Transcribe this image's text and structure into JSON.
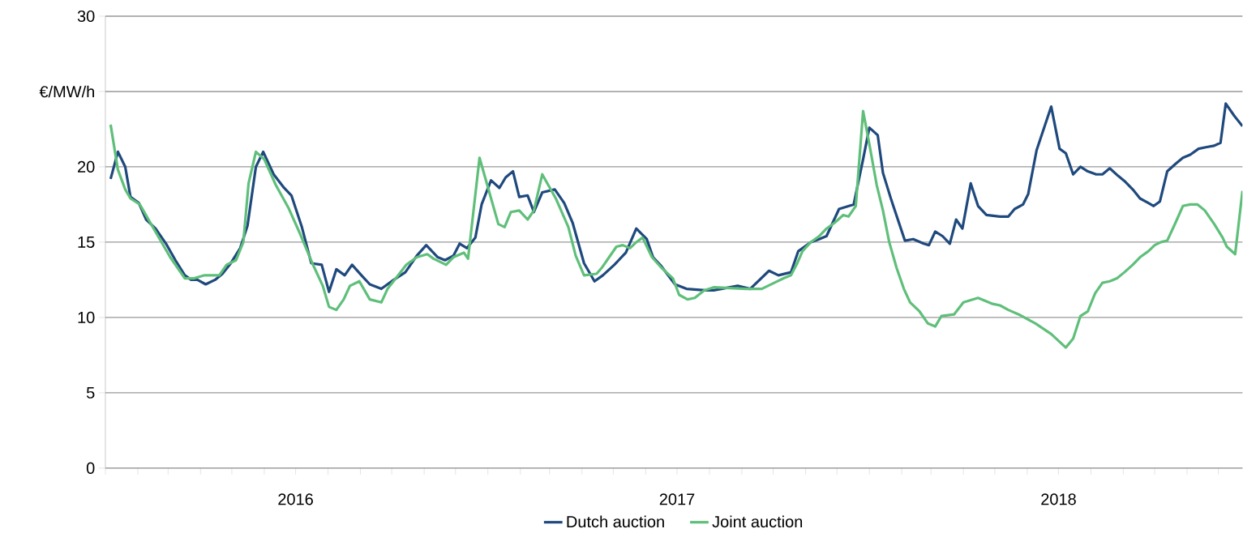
{
  "chart_data": {
    "type": "line",
    "legend": "bottom",
    "grid": "y",
    "marker": "none",
    "line_style": "solid",
    "xlim": [
      "2016-01-01",
      "2018-12-24"
    ],
    "ylim": [
      0,
      30
    ],
    "yticks": [
      0,
      5,
      10,
      15,
      20,
      {
        "value": 25,
        "label": "€/MW/h"
      },
      30
    ],
    "xticks": [
      {
        "value": "2016-01-01",
        "label": null
      },
      {
        "value": "2016-02-01",
        "label": null
      },
      {
        "value": "2016-03-01",
        "label": null
      },
      {
        "value": "2016-04-01",
        "label": null
      },
      {
        "value": "2016-05-01",
        "label": null
      },
      {
        "value": "2016-06-01",
        "label": null
      },
      {
        "value": "2016-07-01",
        "label": "2016"
      },
      {
        "value": "2016-08-01",
        "label": null
      },
      {
        "value": "2016-09-01",
        "label": null
      },
      {
        "value": "2016-10-01",
        "label": null
      },
      {
        "value": "2016-11-01",
        "label": null
      },
      {
        "value": "2016-12-01",
        "label": null
      },
      {
        "value": "2017-01-01",
        "label": null
      },
      {
        "value": "2017-02-01",
        "label": null
      },
      {
        "value": "2017-03-01",
        "label": null
      },
      {
        "value": "2017-04-01",
        "label": null
      },
      {
        "value": "2017-05-01",
        "label": null
      },
      {
        "value": "2017-06-01",
        "label": null
      },
      {
        "value": "2017-07-01",
        "label": "2017"
      },
      {
        "value": "2017-08-01",
        "label": null
      },
      {
        "value": "2017-09-01",
        "label": null
      },
      {
        "value": "2017-10-01",
        "label": null
      },
      {
        "value": "2017-11-01",
        "label": null
      },
      {
        "value": "2017-12-01",
        "label": null
      },
      {
        "value": "2018-01-01",
        "label": null
      },
      {
        "value": "2018-02-01",
        "label": null
      },
      {
        "value": "2018-03-01",
        "label": null
      },
      {
        "value": "2018-04-01",
        "label": null
      },
      {
        "value": "2018-05-01",
        "label": null
      },
      {
        "value": "2018-06-01",
        "label": null
      },
      {
        "value": "2018-07-01",
        "label": "2018"
      },
      {
        "value": "2018-08-01",
        "label": null
      },
      {
        "value": "2018-09-01",
        "label": null
      },
      {
        "value": "2018-10-01",
        "label": null
      },
      {
        "value": "2018-11-01",
        "label": null
      },
      {
        "value": "2018-12-01",
        "label": null
      }
    ],
    "series": [
      {
        "name": "Dutch auction",
        "color": "#1f497d",
        "x": [
          "2016-01-06",
          "2016-01-13",
          "2016-01-20",
          "2016-01-25",
          "2016-02-02",
          "2016-02-09",
          "2016-02-18",
          "2016-02-28",
          "2016-03-08",
          "2016-03-17",
          "2016-03-23",
          "2016-03-29",
          "2016-04-06",
          "2016-04-15",
          "2016-04-22",
          "2016-04-30",
          "2016-05-09",
          "2016-05-16",
          "2016-05-24",
          "2016-05-31",
          "2016-06-10",
          "2016-06-20",
          "2016-06-27",
          "2016-07-07",
          "2016-07-16",
          "2016-07-26",
          "2016-08-02",
          "2016-08-09",
          "2016-08-17",
          "2016-08-24",
          "2016-09-02",
          "2016-09-10",
          "2016-09-21",
          "2016-10-03",
          "2016-10-14",
          "2016-10-25",
          "2016-11-03",
          "2016-11-14",
          "2016-11-21",
          "2016-11-29",
          "2016-12-05",
          "2016-12-12",
          "2016-12-20",
          "2016-12-26",
          "2017-01-04",
          "2017-01-12",
          "2017-01-18",
          "2017-01-25",
          "2017-01-31",
          "2017-02-08",
          "2017-02-14",
          "2017-02-22",
          "2017-03-06",
          "2017-03-15",
          "2017-03-23",
          "2017-04-03",
          "2017-04-13",
          "2017-04-21",
          "2017-05-02",
          "2017-05-13",
          "2017-05-23",
          "2017-06-02",
          "2017-06-08",
          "2017-06-16",
          "2017-06-29",
          "2017-07-10",
          "2017-07-28",
          "2017-08-05",
          "2017-08-28",
          "2017-09-09",
          "2017-09-27",
          "2017-10-06",
          "2017-10-18",
          "2017-10-25",
          "2017-11-06",
          "2017-11-14",
          "2017-11-21",
          "2017-12-03",
          "2017-12-17",
          "2017-12-26",
          "2018-01-01",
          "2018-01-09",
          "2018-01-14",
          "2018-01-22",
          "2018-02-04",
          "2018-02-12",
          "2018-02-22",
          "2018-02-27",
          "2018-03-05",
          "2018-03-12",
          "2018-03-19",
          "2018-03-25",
          "2018-03-31",
          "2018-04-08",
          "2018-04-15",
          "2018-04-23",
          "2018-05-06",
          "2018-05-14",
          "2018-05-20",
          "2018-05-28",
          "2018-06-02",
          "2018-06-10",
          "2018-06-24",
          "2018-07-02",
          "2018-07-08",
          "2018-07-15",
          "2018-07-22",
          "2018-07-29",
          "2018-08-06",
          "2018-08-12",
          "2018-08-19",
          "2018-08-27",
          "2018-09-03",
          "2018-09-10",
          "2018-09-17",
          "2018-09-25",
          "2018-09-30",
          "2018-10-06",
          "2018-10-13",
          "2018-10-21",
          "2018-10-28",
          "2018-11-04",
          "2018-11-12",
          "2018-11-19",
          "2018-11-27",
          "2018-12-03",
          "2018-12-08",
          "2018-12-16",
          "2018-12-24"
        ],
        "values": [
          19.2,
          21.0,
          20.0,
          18.0,
          17.6,
          16.5,
          15.9,
          14.9,
          13.8,
          12.8,
          12.5,
          12.5,
          12.2,
          12.5,
          12.9,
          13.6,
          14.6,
          16.1,
          20.0,
          21.0,
          19.5,
          18.6,
          18.1,
          16.0,
          13.6,
          13.5,
          11.7,
          13.2,
          12.8,
          13.5,
          12.8,
          12.2,
          11.9,
          12.5,
          13.0,
          14.1,
          14.8,
          14.0,
          13.8,
          14.1,
          14.9,
          14.6,
          15.3,
          17.5,
          19.1,
          18.6,
          19.3,
          19.7,
          18.0,
          18.1,
          17.0,
          18.3,
          18.5,
          17.6,
          16.3,
          13.6,
          12.4,
          12.8,
          13.5,
          14.3,
          15.9,
          15.2,
          14.0,
          13.4,
          12.2,
          11.9,
          11.8,
          11.8,
          12.1,
          11.9,
          13.1,
          12.8,
          13.0,
          14.4,
          15.0,
          15.2,
          15.4,
          17.2,
          17.5,
          20.5,
          22.6,
          22.1,
          19.6,
          17.8,
          15.1,
          15.2,
          14.9,
          14.8,
          15.7,
          15.4,
          14.9,
          16.5,
          15.9,
          18.9,
          17.4,
          16.8,
          16.7,
          16.7,
          17.2,
          17.5,
          18.2,
          21.1,
          24.0,
          21.2,
          20.9,
          19.5,
          20.0,
          19.7,
          19.5,
          19.5,
          19.9,
          19.4,
          19.0,
          18.5,
          17.9,
          17.6,
          17.4,
          17.7,
          19.7,
          20.2,
          20.6,
          20.8,
          21.2,
          21.3,
          21.4,
          21.6,
          24.2,
          23.4,
          22.7
        ]
      },
      {
        "name": "Joint auction",
        "color": "#5fbf7a",
        "x": [
          "2016-01-06",
          "2016-01-13",
          "2016-01-20",
          "2016-01-25",
          "2016-02-03",
          "2016-02-17",
          "2016-03-03",
          "2016-03-17",
          "2016-03-26",
          "2016-04-05",
          "2016-04-19",
          "2016-04-26",
          "2016-05-05",
          "2016-05-12",
          "2016-05-17",
          "2016-05-24",
          "2016-06-01",
          "2016-06-12",
          "2016-06-24",
          "2016-07-05",
          "2016-07-17",
          "2016-07-27",
          "2016-08-02",
          "2016-08-09",
          "2016-08-16",
          "2016-08-22",
          "2016-08-31",
          "2016-09-10",
          "2016-09-21",
          "2016-09-27",
          "2016-10-06",
          "2016-10-15",
          "2016-10-25",
          "2016-11-04",
          "2016-11-10",
          "2016-11-22",
          "2016-11-29",
          "2016-12-09",
          "2016-12-13",
          "2016-12-24",
          "2017-01-11",
          "2017-01-17",
          "2017-01-23",
          "2017-01-31",
          "2017-02-08",
          "2017-02-14",
          "2017-02-22",
          "2017-03-07",
          "2017-03-19",
          "2017-03-26",
          "2017-04-03",
          "2017-04-15",
          "2017-04-20",
          "2017-04-27",
          "2017-05-04",
          "2017-05-10",
          "2017-05-17",
          "2017-05-23",
          "2017-05-29",
          "2017-06-07",
          "2017-06-16",
          "2017-06-27",
          "2017-07-03",
          "2017-07-11",
          "2017-07-18",
          "2017-07-27",
          "2017-08-05",
          "2017-09-05",
          "2017-09-20",
          "2017-10-02",
          "2017-10-11",
          "2017-10-18",
          "2017-10-24",
          "2017-10-29",
          "2017-11-06",
          "2017-11-14",
          "2017-11-21",
          "2017-11-29",
          "2017-12-07",
          "2017-12-12",
          "2017-12-19",
          "2017-12-26",
          "2018-01-01",
          "2018-01-08",
          "2018-01-14",
          "2018-01-20",
          "2018-01-27",
          "2018-02-03",
          "2018-02-09",
          "2018-02-18",
          "2018-02-26",
          "2018-03-05",
          "2018-03-11",
          "2018-03-23",
          "2018-04-01",
          "2018-04-15",
          "2018-04-29",
          "2018-05-06",
          "2018-05-14",
          "2018-05-24",
          "2018-06-09",
          "2018-06-24",
          "2018-07-08",
          "2018-07-15",
          "2018-07-22",
          "2018-07-29",
          "2018-08-05",
          "2018-08-12",
          "2018-08-19",
          "2018-08-26",
          "2018-09-02",
          "2018-09-10",
          "2018-09-17",
          "2018-09-25",
          "2018-10-01",
          "2018-10-07",
          "2018-10-13",
          "2018-10-21",
          "2018-10-28",
          "2018-11-04",
          "2018-11-11",
          "2018-11-18",
          "2018-11-27",
          "2018-12-05",
          "2018-12-09",
          "2018-12-17",
          "2018-12-24"
        ],
        "values": [
          22.8,
          19.8,
          18.5,
          17.9,
          17.5,
          15.8,
          14.0,
          12.6,
          12.6,
          12.8,
          12.8,
          13.5,
          13.8,
          15.0,
          18.9,
          21.0,
          20.5,
          18.8,
          17.3,
          15.6,
          13.6,
          12.1,
          10.7,
          10.5,
          11.2,
          12.1,
          12.4,
          11.2,
          11.0,
          11.9,
          12.7,
          13.5,
          14.0,
          14.2,
          13.9,
          13.5,
          14.0,
          14.3,
          13.9,
          20.6,
          16.2,
          16.0,
          17.0,
          17.1,
          16.5,
          17.1,
          19.5,
          17.9,
          16.0,
          14.1,
          12.8,
          12.9,
          13.3,
          14.0,
          14.7,
          14.8,
          14.6,
          15.0,
          15.3,
          14.0,
          13.3,
          12.6,
          11.5,
          11.2,
          11.3,
          11.8,
          12.0,
          11.9,
          11.9,
          12.3,
          12.6,
          12.8,
          13.6,
          14.4,
          15.0,
          15.4,
          15.9,
          16.3,
          16.8,
          16.7,
          17.4,
          23.7,
          21.5,
          18.8,
          17.1,
          15.0,
          13.3,
          11.9,
          11.0,
          10.4,
          9.6,
          9.4,
          10.1,
          10.2,
          11.0,
          11.3,
          10.9,
          10.8,
          10.5,
          10.2,
          9.6,
          8.9,
          8.0,
          8.6,
          10.1,
          10.4,
          11.6,
          12.3,
          12.4,
          12.6,
          13.0,
          13.5,
          14.0,
          14.4,
          14.8,
          15.0,
          15.1,
          16.3,
          17.4,
          17.5,
          17.5,
          17.1,
          16.2,
          15.3,
          14.7,
          14.2,
          18.4
        ]
      }
    ]
  }
}
